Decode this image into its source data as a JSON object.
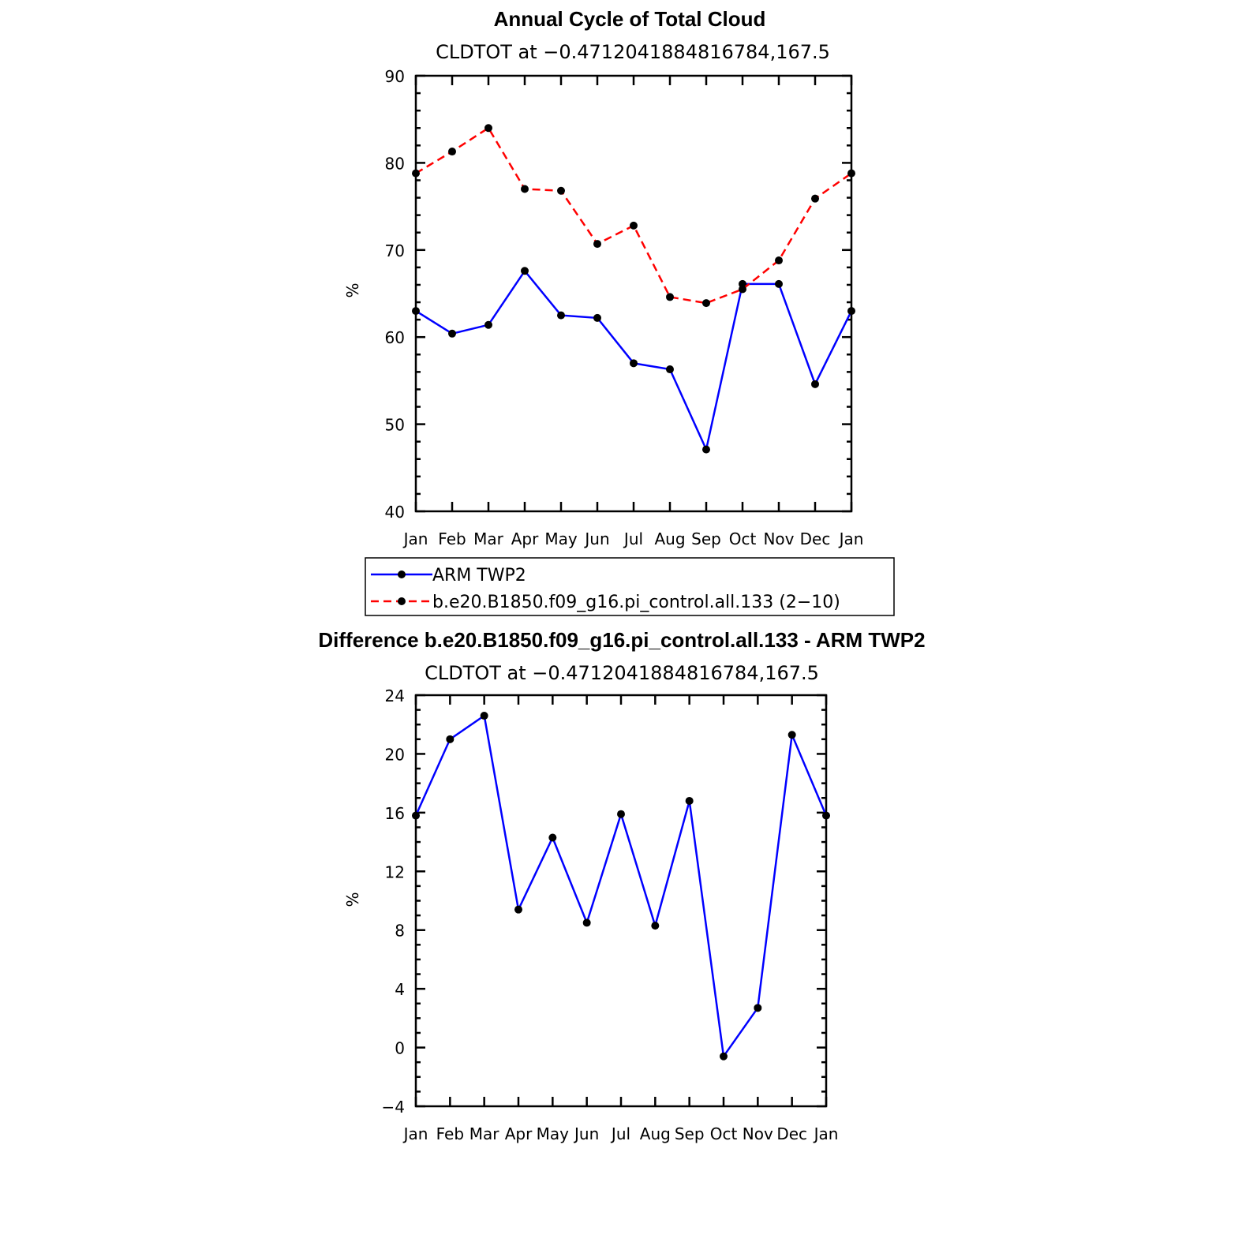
{
  "chart_data": [
    {
      "type": "line",
      "title": "Annual Cycle of Total Cloud",
      "subtitle": "CLDTOT at −0.4712041884816784,167.5",
      "ylabel": "%",
      "ylim": [
        40,
        90
      ],
      "yticks": [
        "40",
        "50",
        "60",
        "70",
        "80",
        "90"
      ],
      "yticks_values": [
        40,
        50,
        60,
        70,
        80,
        90
      ],
      "y_minor_step": 2,
      "categories": [
        "Jan",
        "Feb",
        "Mar",
        "Apr",
        "May",
        "Jun",
        "Jul",
        "Aug",
        "Sep",
        "Oct",
        "Nov",
        "Dec",
        "Jan"
      ],
      "series": [
        {
          "name": "ARM TWP2",
          "color": "#0000ff",
          "dash": "solid",
          "values": [
            63.0,
            60.4,
            61.4,
            67.6,
            62.5,
            62.2,
            57.0,
            56.3,
            47.1,
            66.1,
            66.1,
            54.6,
            63.0
          ]
        },
        {
          "name": "b.e20.B1850.f09_g16.pi_control.all.133 (2−10)",
          "color": "#ff0000",
          "dash": "dashed",
          "values": [
            78.8,
            81.3,
            84.0,
            77.0,
            76.8,
            70.7,
            72.8,
            64.6,
            63.9,
            65.5,
            68.8,
            75.9,
            78.8
          ]
        }
      ],
      "legend": "below"
    },
    {
      "type": "line",
      "title": "Difference b.e20.B1850.f09_g16.pi_control.all.133 - ARM TWP2",
      "subtitle": "CLDTOT at −0.4712041884816784,167.5",
      "ylabel": "%",
      "ylim": [
        -4,
        24
      ],
      "yticks": [
        "−4",
        "0",
        "4",
        "8",
        "12",
        "16",
        "20",
        "24"
      ],
      "yticks_values": [
        -4,
        0,
        4,
        8,
        12,
        16,
        20,
        24
      ],
      "y_minor_step": 1,
      "categories": [
        "Jan",
        "Feb",
        "Mar",
        "Apr",
        "May",
        "Jun",
        "Jul",
        "Aug",
        "Sep",
        "Oct",
        "Nov",
        "Dec",
        "Jan"
      ],
      "series": [
        {
          "color": "#0000ff",
          "dash": "solid",
          "values": [
            15.8,
            21.0,
            22.6,
            9.4,
            14.3,
            8.5,
            15.9,
            8.3,
            16.8,
            -0.6,
            2.7,
            21.3,
            15.8
          ]
        }
      ]
    }
  ]
}
